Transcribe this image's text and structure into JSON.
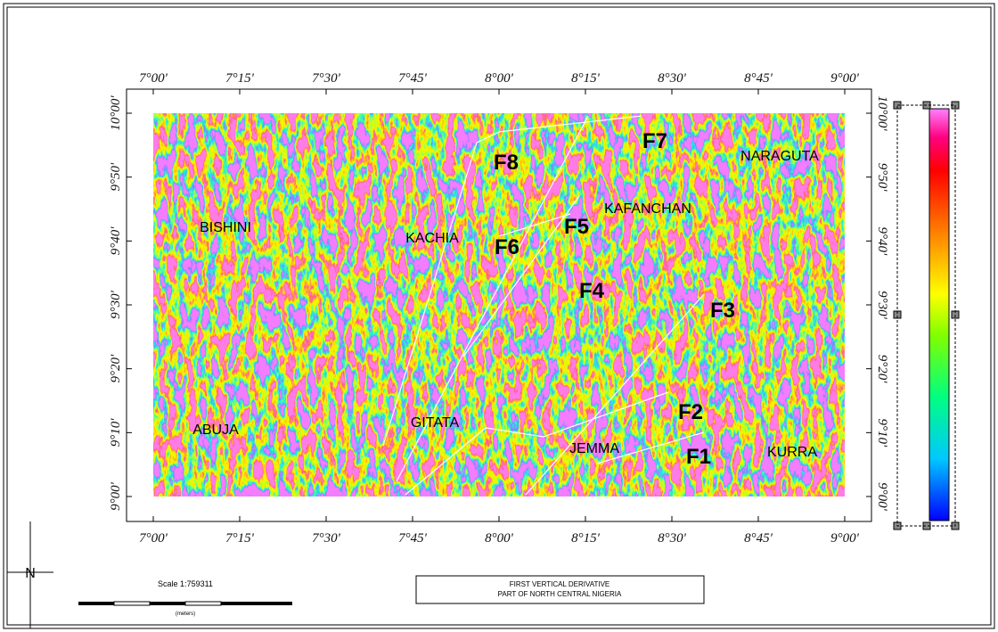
{
  "map": {
    "lon_labels": [
      "7°00'",
      "7°15'",
      "7°30'",
      "7°45'",
      "8°00'",
      "8°15'",
      "8°30'",
      "8°45'",
      "9°00'"
    ],
    "lat_labels": [
      "10°00'",
      "9°50'",
      "9°40'",
      "9°30'",
      "9°20'",
      "9°10'",
      "9°00'"
    ],
    "places": [
      "BISHINI",
      "KACHIA",
      "KAFANCHAN",
      "NARAGUTA",
      "ABUJA",
      "GITATA",
      "JEMMA",
      "KURRA"
    ],
    "faults": [
      "F1",
      "F2",
      "F3",
      "F4",
      "F5",
      "F6",
      "F7",
      "F8"
    ],
    "north": "N"
  },
  "scale": {
    "title": "Scale 1:759311",
    "units": "(meters)"
  },
  "caption": {
    "lines": [
      "FIRST VERTICAL DERIVATIVE",
      "PART OF NORTH CENTRAL NIGERIA"
    ]
  }
}
